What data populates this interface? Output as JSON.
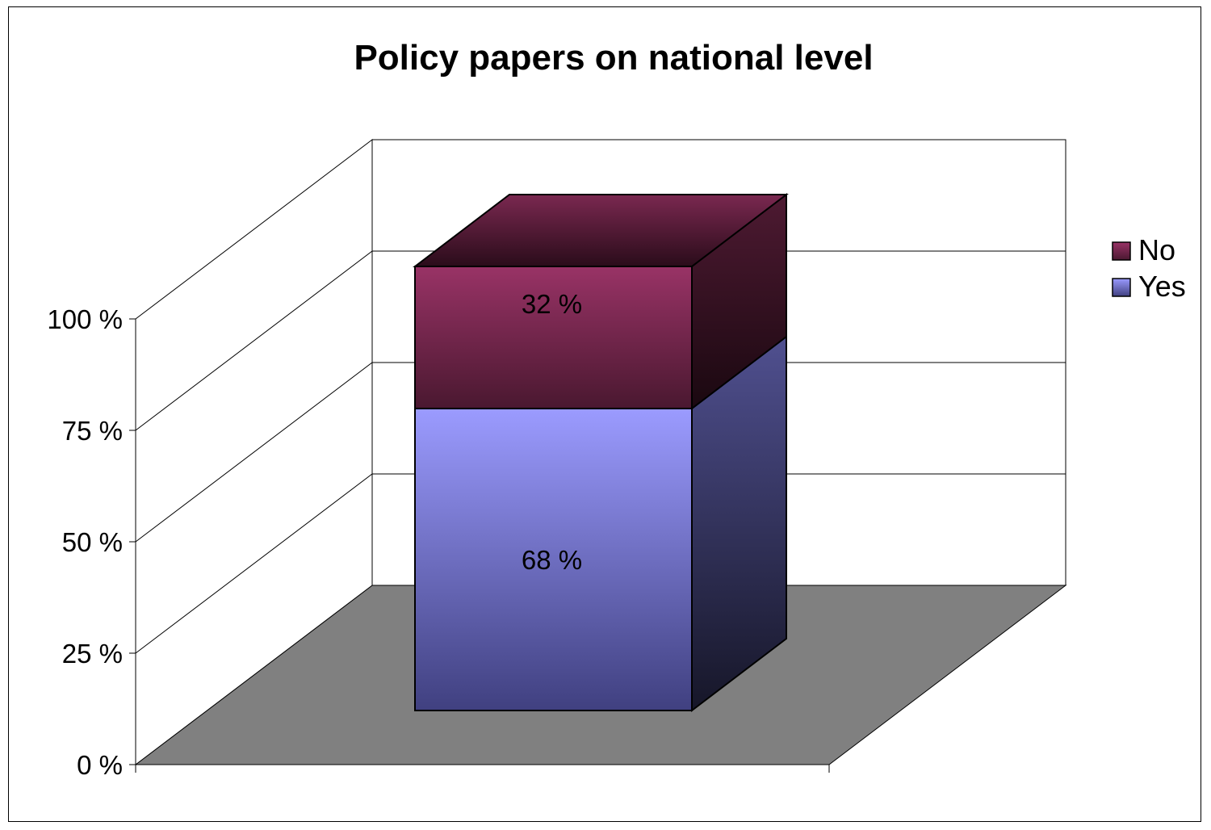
{
  "chart_data": {
    "type": "bar",
    "stacked": true,
    "percent_stacked": true,
    "three_d": true,
    "title": "Policy papers on national level",
    "categories": [
      ""
    ],
    "series": [
      {
        "name": "Yes",
        "values": [
          68
        ],
        "label": "68 %",
        "color": "#9999ff"
      },
      {
        "name": "No",
        "values": [
          32
        ],
        "label": "32 %",
        "color": "#993366"
      }
    ],
    "ylim": [
      0,
      100
    ],
    "yticks": [
      0,
      25,
      50,
      75,
      100
    ],
    "ytick_labels": [
      "0 %",
      "25 %",
      "50 %",
      "75 %",
      "100 %"
    ],
    "xlabel": "",
    "ylabel": "",
    "grid": true,
    "floor_color": "#808080",
    "legend": {
      "position": "right",
      "entries": [
        "No",
        "Yes"
      ]
    }
  }
}
